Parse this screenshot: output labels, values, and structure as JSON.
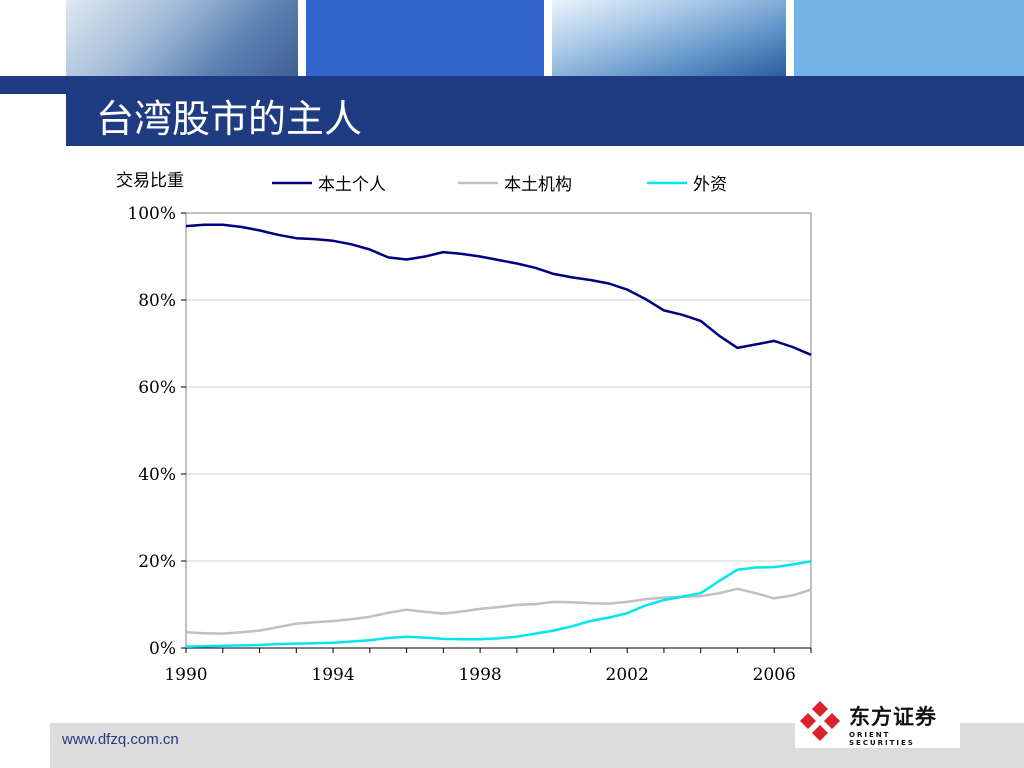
{
  "page": {
    "title": "台湾股市的主人",
    "footer_url": "www.dfzq.com.cn",
    "logo_name": "东方证券",
    "logo_sub": "ORIENT SECURITIES"
  },
  "colors": {
    "title_bar": "#1f3b82",
    "series_local_individual": "#000080",
    "series_local_institution": "#c0c0c0",
    "series_foreign": "#00e5ee",
    "logo_red": "#d9232d"
  },
  "chart_data": {
    "type": "line",
    "ylabel": "交易比重",
    "xlim": [
      1990,
      2007
    ],
    "ylim": [
      0,
      100
    ],
    "x_ticks": [
      1990,
      1994,
      1998,
      2002,
      2006
    ],
    "y_ticks": [
      "0%",
      "20%",
      "40%",
      "60%",
      "80%",
      "100%"
    ],
    "y_tick_values": [
      0,
      20,
      40,
      60,
      80,
      100
    ],
    "grid": true,
    "legend": "top",
    "x": [
      1990,
      1990.5,
      1991,
      1991.5,
      1992,
      1992.5,
      1993,
      1993.5,
      1994,
      1994.5,
      1995,
      1995.5,
      1996,
      1996.5,
      1997,
      1997.5,
      1998,
      1998.5,
      1999,
      1999.5,
      2000,
      2000.5,
      2001,
      2001.5,
      2002,
      2002.5,
      2003,
      2003.5,
      2004,
      2004.5,
      2005,
      2005.5,
      2006,
      2006.5,
      2007
    ],
    "series": [
      {
        "name": "本土个人",
        "color": "#000080",
        "values": [
          97,
          97.3,
          97.3,
          96.8,
          96,
          95,
          94.2,
          94,
          93.6,
          92.8,
          91.6,
          89.8,
          89.3,
          90,
          91,
          90.6,
          90,
          89.2,
          88.4,
          87.4,
          86,
          85.2,
          84.6,
          83.8,
          82.4,
          80.2,
          77.6,
          76.6,
          75.2,
          71.8,
          69,
          69.8,
          70.6,
          69.2,
          67.4
        ]
      },
      {
        "name": "本土机构",
        "color": "#c0c0c0",
        "values": [
          3.6,
          3.4,
          3.3,
          3.6,
          4.0,
          4.8,
          5.6,
          5.9,
          6.2,
          6.6,
          7.2,
          8.1,
          8.8,
          8.3,
          7.9,
          8.4,
          9.0,
          9.4,
          9.9,
          10.1,
          10.6,
          10.5,
          10.3,
          10.2,
          10.6,
          11.2,
          11.6,
          11.8,
          11.9,
          12.6,
          13.6,
          12.6,
          11.4,
          12.1,
          13.4
        ]
      },
      {
        "name": "外资",
        "color": "#00e5ee",
        "values": [
          0.3,
          0.4,
          0.5,
          0.6,
          0.7,
          0.9,
          1.0,
          1.1,
          1.2,
          1.5,
          1.8,
          2.3,
          2.6,
          2.4,
          2.1,
          2.0,
          2.0,
          2.2,
          2.6,
          3.3,
          4.0,
          5.0,
          6.2,
          7.0,
          8.0,
          9.8,
          11.0,
          11.8,
          12.6,
          15.4,
          18.0,
          18.5,
          18.6,
          19.2,
          19.9
        ]
      }
    ]
  }
}
